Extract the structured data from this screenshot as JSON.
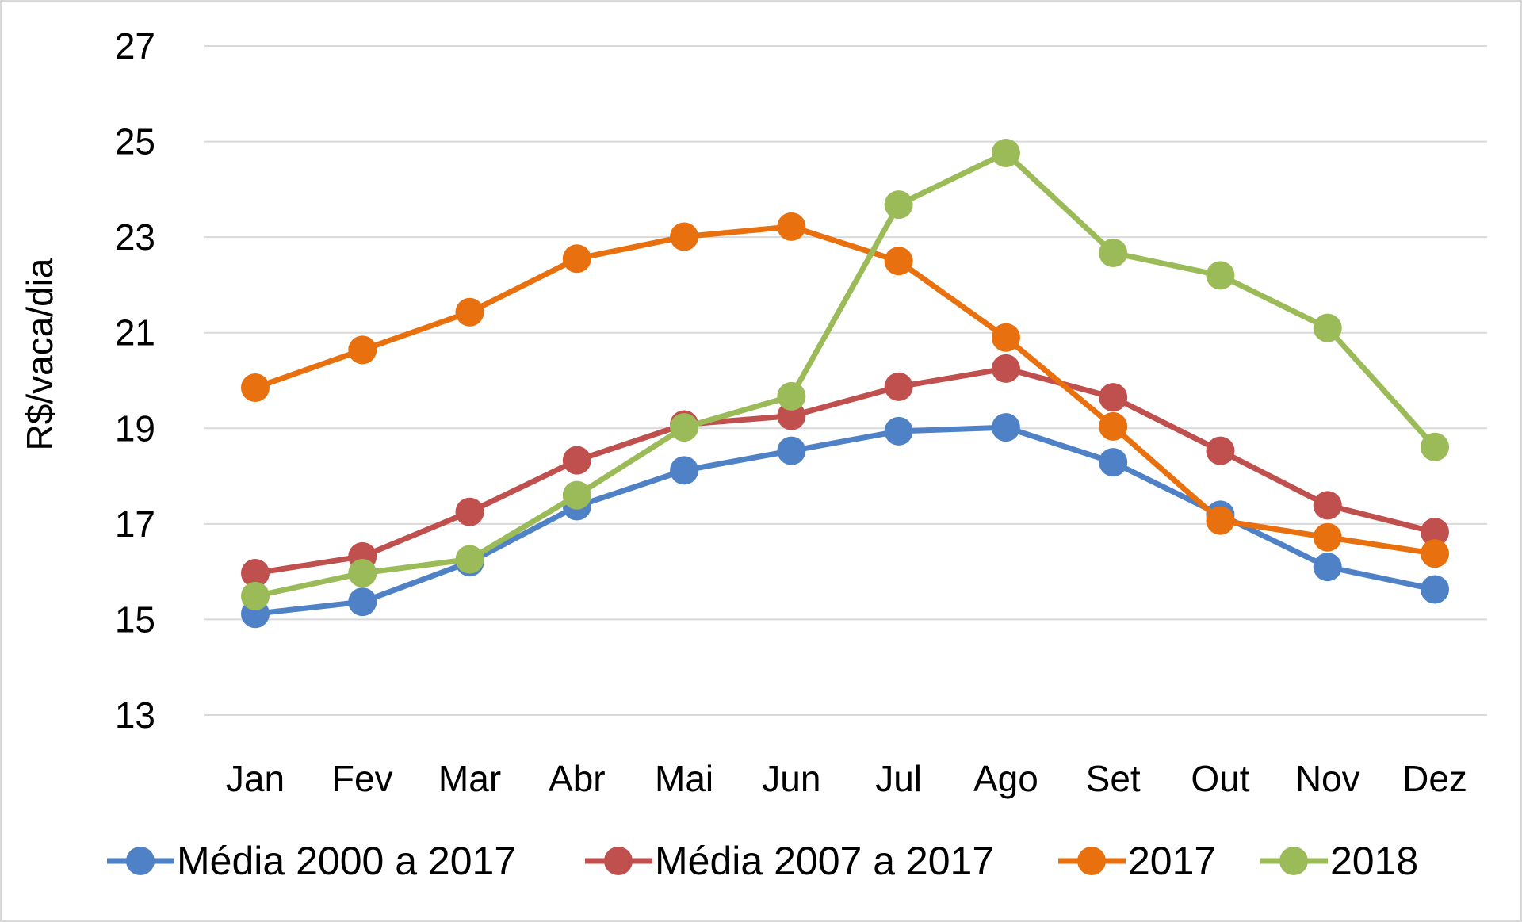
{
  "chart_data": {
    "type": "line",
    "title": "",
    "xlabel": "",
    "ylabel": "R$/vaca/dia",
    "ylim": [
      13,
      27
    ],
    "yticks": [
      13,
      15,
      17,
      19,
      21,
      23,
      25,
      27
    ],
    "grid": true,
    "legend": "bottom",
    "categories": [
      "Jan",
      "Fev",
      "Mar",
      "Abr",
      "Mai",
      "Jun",
      "Jul",
      "Ago",
      "Set",
      "Out",
      "Nov",
      "Dez"
    ],
    "series": [
      {
        "name": "Média 2000 a 2017",
        "color": "#4F81C6",
        "values": [
          15.12,
          15.37,
          16.2,
          17.37,
          18.12,
          18.53,
          18.94,
          19.02,
          18.29,
          17.19,
          16.1,
          15.63
        ]
      },
      {
        "name": "Média 2007 a 2017",
        "color": "#C0504D",
        "values": [
          15.97,
          16.32,
          17.25,
          18.33,
          19.08,
          19.26,
          19.87,
          20.25,
          19.65,
          18.53,
          17.39,
          16.83
        ]
      },
      {
        "name": "2017",
        "color": "#E8700E",
        "values": [
          19.85,
          20.64,
          21.43,
          22.55,
          23.01,
          23.22,
          22.5,
          20.9,
          19.04,
          17.07,
          16.72,
          16.38
        ]
      },
      {
        "name": "2018",
        "color": "#9BBB59",
        "values": [
          15.49,
          15.97,
          16.26,
          17.6,
          19.02,
          19.67,
          23.68,
          24.76,
          22.67,
          22.2,
          21.1,
          18.61
        ]
      }
    ]
  }
}
